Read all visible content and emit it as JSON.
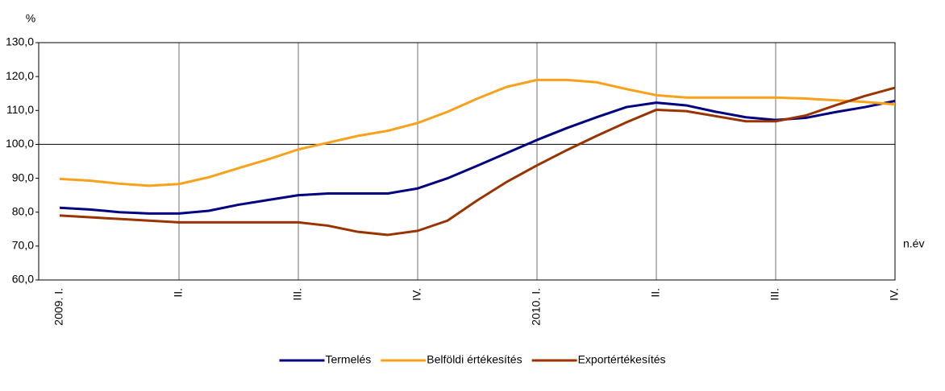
{
  "chart_data": {
    "type": "line",
    "y_label": "%",
    "x_label": "n.év",
    "categories": [
      "2009. I.",
      null,
      null,
      null,
      "II.",
      null,
      null,
      null,
      "III.",
      null,
      null,
      null,
      "IV.",
      null,
      null,
      null,
      "2010. I.",
      null,
      null,
      null,
      "II.",
      null,
      null,
      null,
      "III.",
      null,
      null,
      null,
      "IV."
    ],
    "series": [
      {
        "name": "Termelés",
        "color": "#000080",
        "values": [
          81.3,
          80.8,
          80.0,
          79.6,
          79.6,
          80.4,
          82.2,
          83.6,
          85.0,
          85.5,
          85.5,
          85.5,
          87.0,
          90.0,
          93.7,
          97.5,
          101.3,
          104.8,
          108.0,
          111.0,
          112.3,
          111.5,
          109.6,
          108.0,
          107.2,
          107.8,
          109.5,
          111.0,
          112.8
        ]
      },
      {
        "name": "Belföldi értékesítés",
        "color": "#f9a11b",
        "values": [
          89.8,
          89.3,
          88.4,
          87.8,
          88.3,
          90.3,
          93.0,
          95.6,
          98.5,
          100.5,
          102.5,
          104.0,
          106.3,
          109.6,
          113.5,
          117.0,
          119.0,
          119.0,
          118.3,
          116.3,
          114.5,
          113.8,
          113.8,
          113.8,
          113.8,
          113.5,
          113.0,
          112.5,
          111.8
        ]
      },
      {
        "name": "Exportértékesítés",
        "color": "#993300",
        "values": [
          79.0,
          78.5,
          78.0,
          77.5,
          77.0,
          77.0,
          77.0,
          77.0,
          77.0,
          76.0,
          74.2,
          73.3,
          74.5,
          77.5,
          83.5,
          89.0,
          93.8,
          98.3,
          102.5,
          106.5,
          110.2,
          109.8,
          108.3,
          106.8,
          106.8,
          108.5,
          111.5,
          114.3,
          116.7
        ]
      }
    ],
    "ylim": [
      60,
      130
    ],
    "yticks": [
      {
        "value": 60,
        "label": "60,0"
      },
      {
        "value": 70,
        "label": "70,0"
      },
      {
        "value": 80,
        "label": "80,0"
      },
      {
        "value": 90,
        "label": "90,0"
      },
      {
        "value": 100,
        "label": "100,0"
      },
      {
        "value": 110,
        "label": "110,0"
      },
      {
        "value": 120,
        "label": "120,0"
      },
      {
        "value": 130,
        "label": "130,0"
      }
    ],
    "reference_line": 100,
    "legend": "bottom"
  }
}
